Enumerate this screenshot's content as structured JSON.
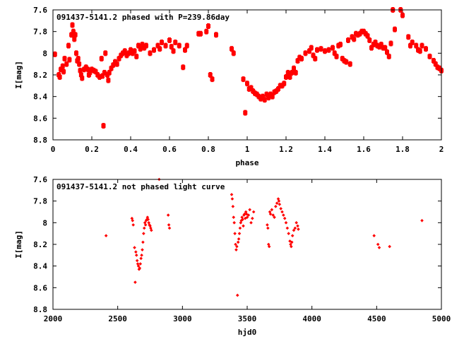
{
  "chart_data": [
    {
      "type": "scatter",
      "title": "091437-5141.2 phased with P=239.86day",
      "xlabel": "phase",
      "ylabel": "I[mag]",
      "xlim": [
        0,
        2
      ],
      "ylim": [
        7.6,
        8.8
      ],
      "y_inverted": true,
      "marker": "star",
      "color": "#ff0000",
      "x_ticks": [
        "0",
        "0.2",
        "0.4",
        "0.6",
        "0.8",
        "1",
        "1.2",
        "1.4",
        "1.6",
        "1.8",
        "2"
      ],
      "y_ticks": [
        "7.6",
        "7.8",
        "8",
        "8.2",
        "8.4",
        "8.6",
        "8.8"
      ],
      "points": [
        [
          0.01,
          8.01
        ],
        [
          0.03,
          8.2
        ],
        [
          0.035,
          8.22
        ],
        [
          0.04,
          8.15
        ],
        [
          0.05,
          8.12
        ],
        [
          0.055,
          8.17
        ],
        [
          0.06,
          8.05
        ],
        [
          0.07,
          8.1
        ],
        [
          0.08,
          7.93
        ],
        [
          0.085,
          8.06
        ],
        [
          0.095,
          7.83
        ],
        [
          0.1,
          7.74
        ],
        [
          0.105,
          7.8
        ],
        [
          0.11,
          7.87
        ],
        [
          0.115,
          7.83
        ],
        [
          0.12,
          8.0
        ],
        [
          0.125,
          8.07
        ],
        [
          0.13,
          8.05
        ],
        [
          0.135,
          8.1
        ],
        [
          0.14,
          8.16
        ],
        [
          0.145,
          8.2
        ],
        [
          0.15,
          8.23
        ],
        [
          0.16,
          8.15
        ],
        [
          0.17,
          8.13
        ],
        [
          0.18,
          8.15
        ],
        [
          0.185,
          8.2
        ],
        [
          0.19,
          8.18
        ],
        [
          0.2,
          8.15
        ],
        [
          0.21,
          8.16
        ],
        [
          0.22,
          8.17
        ],
        [
          0.23,
          8.2
        ],
        [
          0.24,
          8.22
        ],
        [
          0.25,
          8.05
        ],
        [
          0.255,
          8.21
        ],
        [
          0.26,
          8.67
        ],
        [
          0.265,
          8.18
        ],
        [
          0.27,
          8.0
        ],
        [
          0.28,
          8.2
        ],
        [
          0.285,
          8.25
        ],
        [
          0.29,
          8.18
        ],
        [
          0.3,
          8.14
        ],
        [
          0.31,
          8.11
        ],
        [
          0.32,
          8.08
        ],
        [
          0.33,
          8.1
        ],
        [
          0.34,
          8.05
        ],
        [
          0.35,
          8.02
        ],
        [
          0.36,
          8.0
        ],
        [
          0.37,
          7.98
        ],
        [
          0.38,
          8.02
        ],
        [
          0.39,
          8.0
        ],
        [
          0.4,
          7.97
        ],
        [
          0.41,
          8.0
        ],
        [
          0.42,
          7.98
        ],
        [
          0.43,
          8.03
        ],
        [
          0.44,
          7.93
        ],
        [
          0.45,
          7.96
        ],
        [
          0.46,
          7.92
        ],
        [
          0.47,
          7.95
        ],
        [
          0.48,
          7.93
        ],
        [
          0.5,
          8.0
        ],
        [
          0.52,
          7.97
        ],
        [
          0.54,
          7.93
        ],
        [
          0.55,
          7.96
        ],
        [
          0.56,
          7.9
        ],
        [
          0.58,
          7.93
        ],
        [
          0.6,
          7.88
        ],
        [
          0.61,
          7.94
        ],
        [
          0.62,
          7.98
        ],
        [
          0.63,
          7.9
        ],
        [
          0.65,
          7.93
        ],
        [
          0.67,
          8.13
        ],
        [
          0.68,
          7.97
        ],
        [
          0.69,
          7.93
        ],
        [
          0.75,
          7.82
        ],
        [
          0.76,
          7.82
        ],
        [
          0.79,
          7.8
        ],
        [
          0.8,
          7.75
        ],
        [
          0.81,
          8.2
        ],
        [
          0.82,
          8.24
        ],
        [
          0.84,
          7.83
        ],
        [
          0.92,
          7.96
        ],
        [
          0.93,
          8.0
        ],
        [
          0.98,
          8.24
        ],
        [
          0.99,
          8.55
        ],
        [
          1.0,
          8.28
        ],
        [
          1.01,
          8.33
        ],
        [
          1.02,
          8.32
        ],
        [
          1.03,
          8.35
        ],
        [
          1.04,
          8.37
        ],
        [
          1.05,
          8.38
        ],
        [
          1.06,
          8.4
        ],
        [
          1.07,
          8.42
        ],
        [
          1.08,
          8.4
        ],
        [
          1.09,
          8.43
        ],
        [
          1.1,
          8.38
        ],
        [
          1.11,
          8.41
        ],
        [
          1.12,
          8.38
        ],
        [
          1.13,
          8.4
        ],
        [
          1.14,
          8.36
        ],
        [
          1.15,
          8.35
        ],
        [
          1.16,
          8.33
        ],
        [
          1.17,
          8.3
        ],
        [
          1.18,
          8.3
        ],
        [
          1.19,
          8.28
        ],
        [
          1.2,
          8.22
        ],
        [
          1.21,
          8.18
        ],
        [
          1.22,
          8.22
        ],
        [
          1.23,
          8.18
        ],
        [
          1.24,
          8.14
        ],
        [
          1.25,
          8.18
        ],
        [
          1.26,
          8.07
        ],
        [
          1.27,
          8.04
        ],
        [
          1.28,
          8.05
        ],
        [
          1.3,
          8.0
        ],
        [
          1.32,
          7.98
        ],
        [
          1.33,
          7.95
        ],
        [
          1.34,
          8.02
        ],
        [
          1.35,
          8.05
        ],
        [
          1.36,
          7.97
        ],
        [
          1.38,
          7.96
        ],
        [
          1.4,
          7.98
        ],
        [
          1.42,
          7.97
        ],
        [
          1.44,
          7.95
        ],
        [
          1.45,
          8.0
        ],
        [
          1.46,
          8.03
        ],
        [
          1.47,
          7.93
        ],
        [
          1.48,
          7.92
        ],
        [
          1.49,
          8.05
        ],
        [
          1.5,
          8.07
        ],
        [
          1.51,
          8.08
        ],
        [
          1.52,
          7.88
        ],
        [
          1.53,
          8.1
        ],
        [
          1.54,
          7.85
        ],
        [
          1.55,
          7.87
        ],
        [
          1.56,
          7.82
        ],
        [
          1.57,
          7.83
        ],
        [
          1.58,
          7.82
        ],
        [
          1.59,
          7.8
        ],
        [
          1.6,
          7.8
        ],
        [
          1.61,
          7.82
        ],
        [
          1.62,
          7.84
        ],
        [
          1.63,
          7.88
        ],
        [
          1.64,
          7.95
        ],
        [
          1.65,
          7.92
        ],
        [
          1.66,
          7.9
        ],
        [
          1.67,
          7.93
        ],
        [
          1.68,
          7.94
        ],
        [
          1.69,
          7.92
        ],
        [
          1.7,
          7.95
        ],
        [
          1.71,
          7.95
        ],
        [
          1.72,
          7.99
        ],
        [
          1.73,
          8.03
        ],
        [
          1.74,
          7.91
        ],
        [
          1.75,
          7.6
        ],
        [
          1.76,
          7.78
        ],
        [
          1.79,
          7.6
        ],
        [
          1.8,
          7.65
        ],
        [
          1.83,
          7.85
        ],
        [
          1.84,
          7.93
        ],
        [
          1.85,
          7.9
        ],
        [
          1.87,
          7.93
        ],
        [
          1.88,
          7.97
        ],
        [
          1.89,
          7.98
        ],
        [
          1.9,
          7.93
        ],
        [
          1.92,
          7.96
        ],
        [
          1.94,
          8.03
        ],
        [
          1.96,
          8.07
        ],
        [
          1.97,
          8.1
        ],
        [
          1.98,
          8.13
        ],
        [
          1.99,
          8.14
        ],
        [
          2.0,
          8.16
        ]
      ]
    },
    {
      "type": "scatter",
      "title": "091437-5141.2 not phased light curve",
      "xlabel": "hjd0",
      "ylabel": "I[mag]",
      "xlim": [
        2000,
        5000
      ],
      "ylim": [
        7.6,
        8.8
      ],
      "y_inverted": true,
      "marker": "diamond",
      "color": "#ff0000",
      "x_ticks": [
        "2000",
        "2500",
        "3000",
        "3500",
        "4000",
        "4500",
        "5000"
      ],
      "y_ticks": [
        "7.6",
        "7.8",
        "8",
        "8.2",
        "8.4",
        "8.6",
        "8.8"
      ],
      "points": [
        [
          2410,
          8.12
        ],
        [
          2610,
          7.96
        ],
        [
          2615,
          7.98
        ],
        [
          2620,
          8.02
        ],
        [
          2630,
          8.23
        ],
        [
          2635,
          8.55
        ],
        [
          2640,
          8.27
        ],
        [
          2645,
          8.3
        ],
        [
          2650,
          8.35
        ],
        [
          2655,
          8.38
        ],
        [
          2660,
          8.4
        ],
        [
          2665,
          8.43
        ],
        [
          2670,
          8.42
        ],
        [
          2675,
          8.38
        ],
        [
          2680,
          8.33
        ],
        [
          2685,
          8.3
        ],
        [
          2690,
          8.25
        ],
        [
          2695,
          8.18
        ],
        [
          2700,
          8.1
        ],
        [
          2705,
          8.05
        ],
        [
          2710,
          8.0
        ],
        [
          2715,
          8.02
        ],
        [
          2720,
          7.98
        ],
        [
          2725,
          7.97
        ],
        [
          2730,
          7.95
        ],
        [
          2735,
          7.97
        ],
        [
          2740,
          8.0
        ],
        [
          2745,
          8.02
        ],
        [
          2750,
          8.03
        ],
        [
          2755,
          8.05
        ],
        [
          2760,
          8.07
        ],
        [
          2820,
          7.6
        ],
        [
          2890,
          7.93
        ],
        [
          2895,
          8.02
        ],
        [
          2900,
          8.05
        ],
        [
          3380,
          7.74
        ],
        [
          3385,
          7.78
        ],
        [
          3390,
          7.85
        ],
        [
          3395,
          7.95
        ],
        [
          3400,
          8.0
        ],
        [
          3405,
          8.1
        ],
        [
          3410,
          8.2
        ],
        [
          3415,
          8.25
        ],
        [
          3420,
          8.22
        ],
        [
          3425,
          8.67
        ],
        [
          3430,
          8.18
        ],
        [
          3435,
          8.15
        ],
        [
          3440,
          8.1
        ],
        [
          3445,
          8.05
        ],
        [
          3450,
          8.0
        ],
        [
          3455,
          7.98
        ],
        [
          3460,
          7.95
        ],
        [
          3465,
          7.97
        ],
        [
          3470,
          8.03
        ],
        [
          3475,
          7.93
        ],
        [
          3480,
          7.92
        ],
        [
          3485,
          7.96
        ],
        [
          3490,
          7.9
        ],
        [
          3495,
          7.92
        ],
        [
          3500,
          7.95
        ],
        [
          3510,
          7.93
        ],
        [
          3520,
          7.88
        ],
        [
          3530,
          8.0
        ],
        [
          3540,
          7.96
        ],
        [
          3550,
          7.9
        ],
        [
          3655,
          8.02
        ],
        [
          3660,
          8.05
        ],
        [
          3665,
          8.2
        ],
        [
          3670,
          8.22
        ],
        [
          3675,
          7.9
        ],
        [
          3680,
          7.92
        ],
        [
          3690,
          7.88
        ],
        [
          3700,
          7.93
        ],
        [
          3710,
          7.95
        ],
        [
          3720,
          7.85
        ],
        [
          3730,
          7.82
        ],
        [
          3740,
          7.78
        ],
        [
          3745,
          7.8
        ],
        [
          3750,
          7.83
        ],
        [
          3760,
          7.87
        ],
        [
          3770,
          7.9
        ],
        [
          3780,
          7.93
        ],
        [
          3790,
          7.96
        ],
        [
          3800,
          8.0
        ],
        [
          3810,
          8.05
        ],
        [
          3820,
          8.1
        ],
        [
          3830,
          8.17
        ],
        [
          3835,
          8.2
        ],
        [
          3840,
          8.22
        ],
        [
          3845,
          8.18
        ],
        [
          3850,
          8.12
        ],
        [
          3860,
          8.07
        ],
        [
          3870,
          8.05
        ],
        [
          3880,
          8.0
        ],
        [
          3890,
          8.03
        ],
        [
          3895,
          8.06
        ],
        [
          4480,
          8.12
        ],
        [
          4510,
          8.2
        ],
        [
          4520,
          8.23
        ],
        [
          4600,
          8.22
        ],
        [
          4850,
          7.98
        ]
      ]
    }
  ]
}
